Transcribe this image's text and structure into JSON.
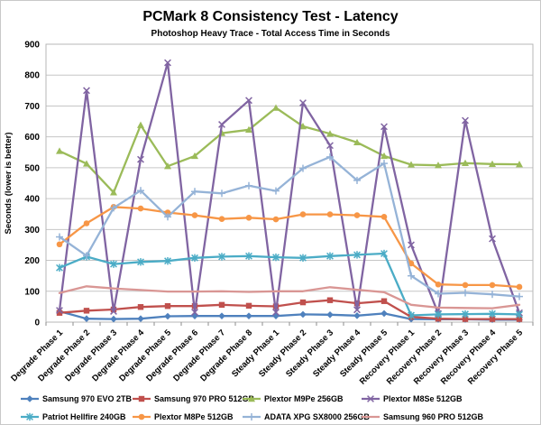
{
  "title": "PCMark 8 Consistency Test - Latency",
  "subtitle": "Photoshop Heavy Trace - Total Access Time in Seconds",
  "chart_data": {
    "type": "line",
    "title": "PCMark 8 Consistency Test - Latency",
    "subtitle": "Photoshop Heavy Trace - Total Access Time in Seconds",
    "xlabel": "",
    "ylabel": "Seconds (lower is better)",
    "ylim": [
      0,
      900
    ],
    "yticks": [
      0,
      100,
      200,
      300,
      400,
      500,
      600,
      700,
      800,
      900
    ],
    "grid": true,
    "legend_position": "bottom",
    "colors": {
      "gridline": "#c6c6c6",
      "plot_border": "#b7b7b7",
      "axis": "#8c8c8c",
      "background": "#ffffff"
    },
    "categories": [
      "Degrade Phase 1",
      "Degrade Phase 2",
      "Degrade Phase 3",
      "Degrade Phase 4",
      "Degrade Phase 5",
      "Degrade Phase 6",
      "Degrade Phase 7",
      "Degrade Phase 8",
      "Steady Phase 1",
      "Steady Phase 2",
      "Steady Phase 3",
      "Steady Phase 4",
      "Steady Phase 5",
      "Recovery Phase 1",
      "Recovery Phase 2",
      "Recovery Phase 3",
      "Recovery Phase 4",
      "Recovery Phase 5"
    ],
    "series": [
      {
        "name": "Samsung 970 EVO 2TB",
        "color": "#4F81BD",
        "marker": "diamond",
        "values": [
          35,
          11,
          10,
          11,
          19,
          20,
          20,
          20,
          20,
          25,
          24,
          21,
          28,
          10,
          9,
          9,
          8,
          8
        ]
      },
      {
        "name": "Samsung 970 PRO 512GB",
        "color": "#C0504D",
        "marker": "square",
        "values": [
          30,
          37,
          41,
          49,
          52,
          52,
          56,
          53,
          51,
          64,
          71,
          61,
          68,
          17,
          11,
          10,
          10,
          10
        ]
      },
      {
        "name": "Plextor M9Pe 256GB",
        "color": "#9BBB59",
        "marker": "triangle",
        "values": [
          554,
          513,
          420,
          638,
          505,
          538,
          612,
          623,
          694,
          634,
          610,
          582,
          538,
          510,
          508,
          515,
          512,
          511
        ]
      },
      {
        "name": "Plextor M8Se 512GB",
        "color": "#8064A2",
        "marker": "x",
        "values": [
          38,
          750,
          35,
          527,
          840,
          32,
          640,
          718,
          32,
          710,
          572,
          40,
          633,
          250,
          28,
          653,
          270,
          30
        ]
      },
      {
        "name": "Patriot Hellfire 240GB",
        "color": "#4BACC6",
        "marker": "star",
        "values": [
          176,
          212,
          188,
          195,
          198,
          208,
          212,
          214,
          210,
          208,
          214,
          218,
          222,
          22,
          25,
          26,
          27,
          25
        ]
      },
      {
        "name": "Plextor M8Pe 512GB",
        "color": "#F79646",
        "marker": "circle",
        "values": [
          252,
          320,
          373,
          368,
          355,
          346,
          334,
          338,
          333,
          349,
          349,
          346,
          341,
          190,
          122,
          120,
          120,
          114
        ]
      },
      {
        "name": "ADATA XPG SX8000 256GB",
        "color": "#95B3D7",
        "marker": "plus",
        "values": [
          276,
          215,
          370,
          426,
          341,
          423,
          417,
          442,
          425,
          498,
          535,
          459,
          514,
          150,
          92,
          95,
          90,
          83
        ]
      },
      {
        "name": "Samsung 960 PRO 512GB",
        "color": "#D99694",
        "marker": "none",
        "values": [
          94,
          116,
          109,
          104,
          99,
          99,
          100,
          98,
          100,
          100,
          113,
          105,
          97,
          56,
          47,
          46,
          45,
          56
        ]
      }
    ]
  }
}
